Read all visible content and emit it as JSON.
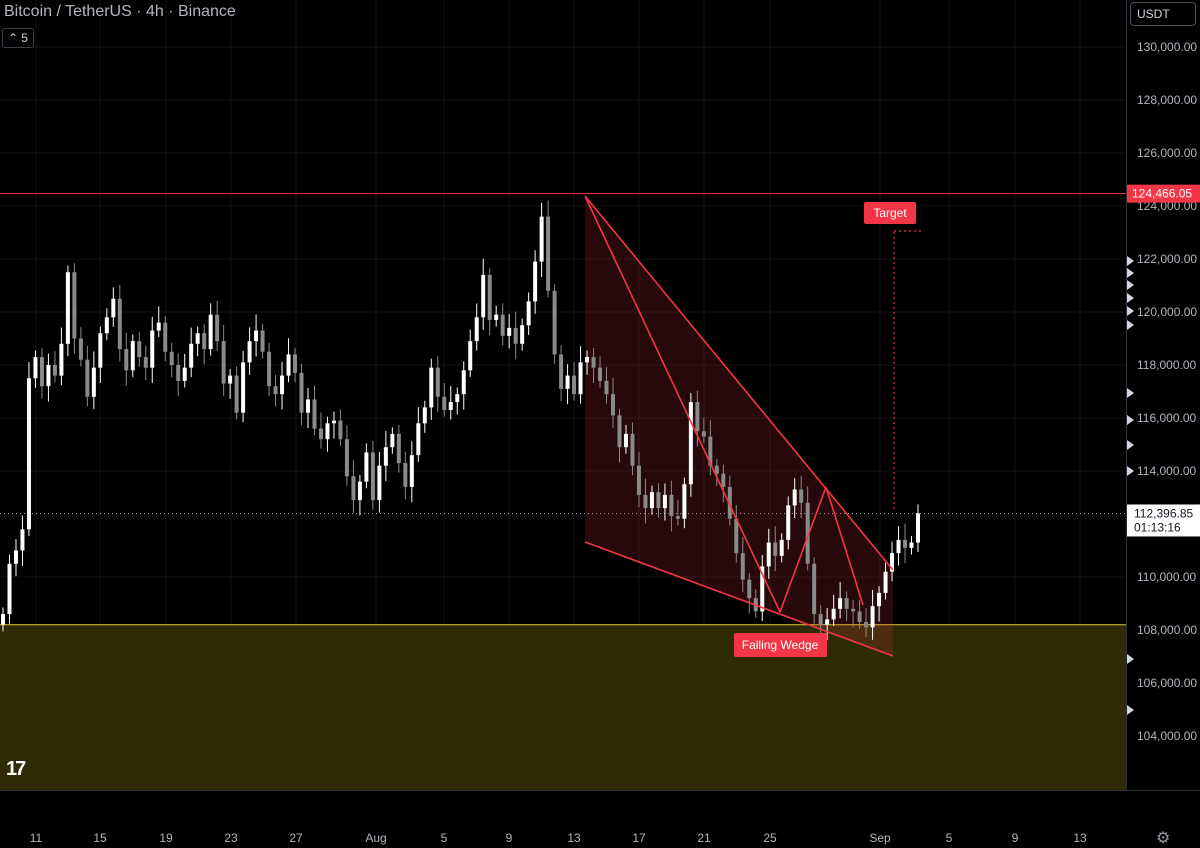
{
  "header": {
    "symbol_title": "Bitcoin / TetherUS · 4h · Binance",
    "interval_value": "5",
    "currency": "USDT"
  },
  "colors": {
    "background": "#000000",
    "up_candle": "#ffffff",
    "wedge_line": "#f23645",
    "support_line": "#c8b432",
    "support_zone": "#2e2b06",
    "label_bg": "#f23645",
    "price_tag_bg": "#ffffff"
  },
  "price_axis": {
    "ticks": [
      "130,000.00",
      "128,000.00",
      "126,000.00",
      "124,000.00",
      "122,000.00",
      "120,000.00",
      "118,000.00",
      "116,000.00",
      "114,000.00",
      "110,000.00",
      "108,000.00",
      "106,000.00",
      "104,000.00"
    ],
    "resistance_label": "124,466.05",
    "current_price": "112,396.85",
    "countdown": "01:13:16"
  },
  "time_axis": {
    "ticks": [
      "11",
      "15",
      "19",
      "23",
      "27",
      "Aug",
      "5",
      "9",
      "13",
      "17",
      "21",
      "25",
      "Sep",
      "5",
      "9",
      "13"
    ]
  },
  "annotations": {
    "target_label": "Target",
    "pattern_label": "Falling Wedge"
  },
  "chart_data": {
    "type": "candlestick",
    "symbol": "BTCUSDT",
    "timeframe": "4h",
    "ylim": [
      102800,
      131500
    ],
    "resistance": 124466.05,
    "support": 108200,
    "current_price": 112396.85,
    "closes": [
      108600,
      110500,
      111000,
      111800,
      117500,
      118300,
      117200,
      118000,
      117600,
      118800,
      121500,
      119000,
      118200,
      116800,
      117900,
      119200,
      119800,
      120500,
      118600,
      117800,
      118900,
      118300,
      117900,
      119300,
      119600,
      118500,
      118000,
      117400,
      117900,
      118800,
      119200,
      118600,
      119900,
      118900,
      117300,
      117600,
      116200,
      118100,
      118900,
      119300,
      118500,
      117200,
      116900,
      117600,
      118400,
      117700,
      116200,
      116700,
      115600,
      115200,
      115800,
      115900,
      115200,
      113800,
      112900,
      113600,
      114700,
      112900,
      114200,
      114900,
      115400,
      114300,
      113400,
      114600,
      115800,
      116400,
      117900,
      116800,
      116300,
      116600,
      116900,
      117800,
      118900,
      119800,
      121400,
      119700,
      119900,
      119100,
      119400,
      118800,
      119500,
      120400,
      121900,
      123600,
      120800,
      118400,
      117100,
      117600,
      116900,
      118100,
      118300,
      117900,
      117400,
      116900,
      116100,
      114900,
      115400,
      114200,
      113100,
      112600,
      113200,
      112600,
      113100,
      112300,
      112200,
      113500,
      116600,
      115500,
      115300,
      114200,
      113900,
      113400,
      112200,
      110900,
      109900,
      109200,
      108700,
      110400,
      111300,
      110800,
      111400,
      112700,
      113300,
      112800,
      110500,
      108600,
      108200,
      108400,
      108800,
      109200,
      108800,
      108700,
      108300,
      108100,
      108900,
      109400,
      110200,
      110900,
      111400,
      111100,
      111300,
      112400
    ]
  }
}
